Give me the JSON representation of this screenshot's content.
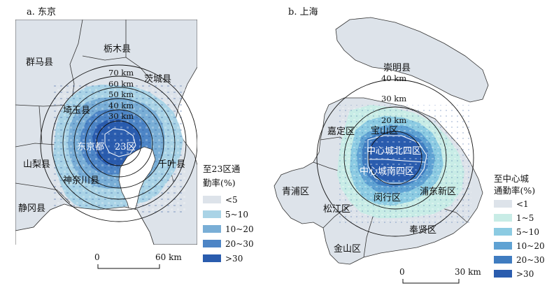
{
  "panels": [
    {
      "title": "a. 东京",
      "regions": {
        "gunma": "群马县",
        "tochigi": "栃木县",
        "ibaraki": "茨城县",
        "saitama": "埼玉县",
        "tokyo": "东京都",
        "ward23": "23区",
        "chiba": "千叶县",
        "yamanashi": "山梨县",
        "kanagawa": "神奈川县",
        "shizuoka": "静冈县"
      },
      "rings": [
        "70 km",
        "60 km",
        "50 km",
        "40 km",
        "30 km"
      ],
      "legend": {
        "title_line1": "至23区通",
        "title_line2": "勤率(%)",
        "classes": [
          {
            "label": "<5",
            "color": "#dde3ea"
          },
          {
            "label": "5~10",
            "color": "#a9d3e6"
          },
          {
            "label": "10~20",
            "color": "#79aed6"
          },
          {
            "label": "20~30",
            "color": "#4d85c6"
          },
          {
            "label": ">30",
            "color": "#2a5cae"
          }
        ]
      },
      "scalebar": {
        "start": "0",
        "end": "60 km"
      }
    },
    {
      "title": "b. 上海",
      "regions": {
        "chongming": "崇明县",
        "jiading": "嘉定区",
        "baoshan": "宝山区",
        "north4": "中心城北四区",
        "south4": "中心城南四区",
        "qingpu": "青浦区",
        "songjiang": "松江区",
        "minhang": "闵行区",
        "pudong": "浦东新区",
        "fengxian": "奉贤区",
        "jinshan": "金山区"
      },
      "rings": [
        "40 km",
        "30 km",
        "20 km"
      ],
      "legend": {
        "title_line1": "至中心城",
        "title_line2": "通勤率(%)",
        "classes": [
          {
            "label": "<1",
            "color": "#dde3ea"
          },
          {
            "label": "1~5",
            "color": "#c8ece6"
          },
          {
            "label": "5~10",
            "color": "#8ccbe2"
          },
          {
            "label": "10~20",
            "color": "#5fa2d3"
          },
          {
            "label": "20~30",
            "color": "#3f7cc0"
          },
          {
            "label": ">30",
            "color": "#2a5cae"
          }
        ]
      },
      "scalebar": {
        "start": "0",
        "end": "30 km"
      }
    }
  ]
}
